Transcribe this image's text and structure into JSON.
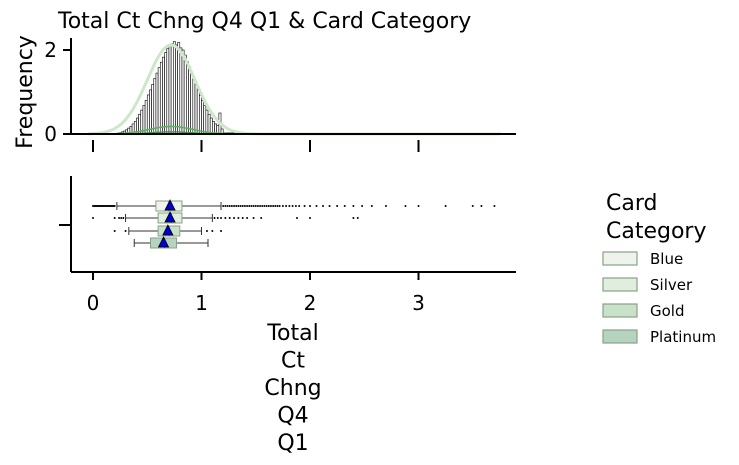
{
  "chart_data": {
    "type": "histogram+boxplot",
    "title": "Total Ct Chng Q4 Q1 & Card Category",
    "histogram": {
      "ylabel": "Frequency",
      "yticks": [
        0,
        2
      ],
      "ylim": [
        0,
        2.3
      ],
      "xlim": [
        -0.2,
        3.9
      ],
      "bin_start": 0.2,
      "bin_end": 1.2,
      "bin_count": 50,
      "bin_heights": [
        0.01,
        0.02,
        0.03,
        0.05,
        0.07,
        0.1,
        0.14,
        0.18,
        0.24,
        0.3,
        0.38,
        0.47,
        0.57,
        0.68,
        0.8,
        0.93,
        1.05,
        1.18,
        1.32,
        1.45,
        1.58,
        1.71,
        1.83,
        1.94,
        2.03,
        2.1,
        2.15,
        2.2,
        2.12,
        2.18,
        2.05,
        2.0,
        1.88,
        1.72,
        1.6,
        1.44,
        1.3,
        1.18,
        1.05,
        0.92,
        0.8,
        0.68,
        0.57,
        0.47,
        0.38,
        0.3,
        0.24,
        0.2,
        0.5,
        0.12
      ],
      "tail": {
        "start": 1.2,
        "end": 3.75,
        "count": 60,
        "height": 0.03
      },
      "kde_peak": 2.12,
      "kde_center": 0.72,
      "kde_sd": 0.22
    },
    "boxplot": {
      "xlabel": "Total\nCt\nChng\nQ4\nQ1",
      "xticks": [
        0,
        1,
        2,
        3
      ],
      "xlim": [
        -0.2,
        3.9
      ],
      "series": [
        {
          "name": "Blue",
          "color": "#eef4ec",
          "q1": 0.58,
          "median": 0.7,
          "q3": 0.82,
          "mean": 0.71,
          "whisker_low": 0.22,
          "whisker_high": 1.18,
          "outliers": [
            0.0,
            0.01,
            0.02,
            0.03,
            0.04,
            0.05,
            0.06,
            0.07,
            0.08,
            0.09,
            0.1,
            0.11,
            0.12,
            0.13,
            0.14,
            0.15,
            0.16,
            0.17,
            0.18,
            0.19,
            0.2,
            1.2,
            1.22,
            1.24,
            1.26,
            1.28,
            1.3,
            1.32,
            1.34,
            1.36,
            1.38,
            1.4,
            1.42,
            1.44,
            1.46,
            1.48,
            1.5,
            1.52,
            1.54,
            1.56,
            1.58,
            1.6,
            1.62,
            1.64,
            1.66,
            1.68,
            1.7,
            1.72,
            1.75,
            1.78,
            1.81,
            1.84,
            1.87,
            1.9,
            1.95,
            2.0,
            2.06,
            2.12,
            2.18,
            2.25,
            2.32,
            2.4,
            2.48,
            2.57,
            2.7,
            2.88,
            3.0,
            3.25,
            3.5,
            3.58,
            3.7
          ]
        },
        {
          "name": "Silver",
          "color": "#dfeedd",
          "q1": 0.6,
          "median": 0.72,
          "q3": 0.82,
          "mean": 0.71,
          "whisker_low": 0.3,
          "whisker_high": 1.1,
          "outliers": [
            0.0,
            0.2,
            0.24,
            0.26,
            0.28,
            1.12,
            1.15,
            1.18,
            1.22,
            1.26,
            1.3,
            1.34,
            1.38,
            1.42,
            1.48,
            1.55,
            1.88,
            2.0,
            2.4,
            2.44
          ]
        },
        {
          "name": "Gold",
          "color": "#c8e2c9",
          "q1": 0.6,
          "median": 0.7,
          "q3": 0.8,
          "mean": 0.69,
          "whisker_low": 0.33,
          "whisker_high": 1.0,
          "outliers": [
            0.2,
            0.3,
            1.05,
            1.1,
            1.18
          ]
        },
        {
          "name": "Platinum",
          "color": "#b6d3c0",
          "q1": 0.53,
          "median": 0.66,
          "q3": 0.77,
          "mean": 0.65,
          "whisker_low": 0.38,
          "whisker_high": 1.06,
          "outliers": []
        }
      ]
    },
    "legend": {
      "title": "Card\nCategory",
      "placement": "right",
      "items": [
        "Blue",
        "Silver",
        "Gold",
        "Platinum"
      ]
    },
    "colors": {
      "axis": "#000000",
      "bar_edge": "#000000",
      "bar_fill": "#ffffff",
      "kde_outer": "#cde8c8",
      "kde_inner": "#5fae60",
      "box_edge": "#8aa08a",
      "mean_marker": "#0000cc"
    }
  }
}
